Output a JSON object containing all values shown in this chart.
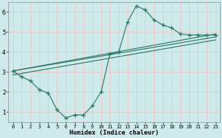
{
  "xlabel": "Humidex (Indice chaleur)",
  "bg_color": "#ceeaeb",
  "grid_color": "#e8c8c8",
  "line_color": "#2d7a6a",
  "xlim": [
    -0.5,
    23.5
  ],
  "ylim": [
    0.5,
    6.5
  ],
  "xticks": [
    0,
    1,
    2,
    3,
    4,
    5,
    6,
    7,
    8,
    9,
    10,
    11,
    12,
    13,
    14,
    15,
    16,
    17,
    18,
    19,
    20,
    21,
    22,
    23
  ],
  "yticks": [
    1,
    2,
    3,
    4,
    5,
    6
  ],
  "line1_x": [
    0,
    1,
    2,
    3,
    4,
    5,
    6,
    7,
    8,
    9,
    10,
    11,
    12,
    13,
    14,
    15,
    16,
    17,
    18,
    19,
    20,
    21,
    22,
    23
  ],
  "line1_y": [
    3.05,
    2.75,
    2.55,
    2.1,
    1.95,
    1.1,
    0.7,
    0.85,
    0.85,
    1.3,
    2.0,
    3.9,
    4.0,
    5.5,
    6.3,
    6.1,
    5.6,
    5.35,
    5.2,
    4.9,
    4.85,
    4.85,
    4.85,
    4.85
  ],
  "line2_x": [
    0,
    23
  ],
  "line2_y": [
    3.05,
    4.9
  ],
  "line3_x": [
    0,
    23
  ],
  "line3_y": [
    3.05,
    4.75
  ],
  "line4_x": [
    0,
    23
  ],
  "line4_y": [
    2.85,
    4.6
  ]
}
